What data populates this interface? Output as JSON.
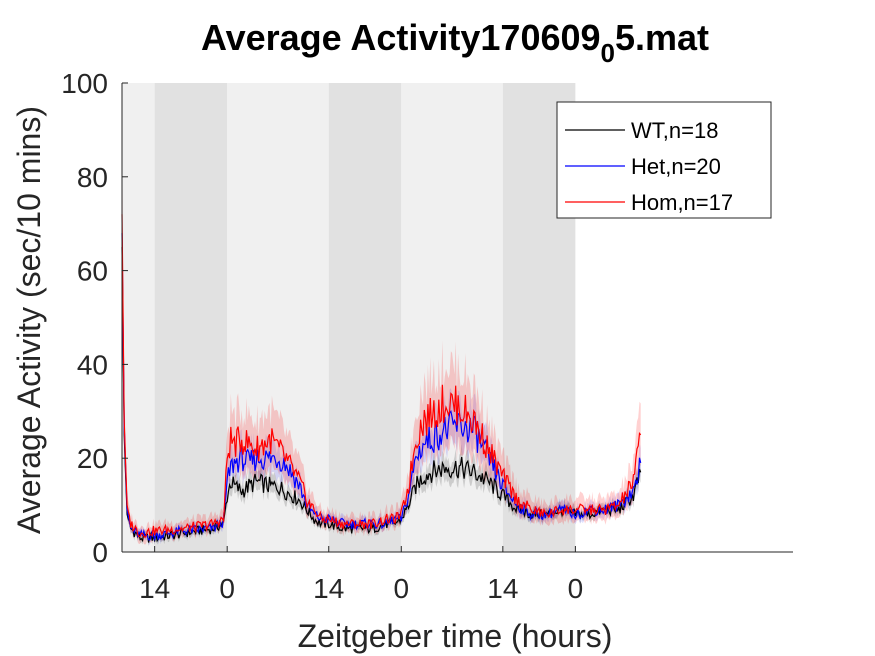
{
  "chart_data": {
    "type": "line",
    "title": "Average Activity170609_05.mat",
    "title_parts": {
      "main": "Average Activity170609",
      "subscript": "0",
      "tail": "5.mat"
    },
    "xlabel": "Zeitgeber time (hours)",
    "ylabel": "Average Activity (sec/10 mins)",
    "ylim": [
      0,
      100
    ],
    "yticks": [
      0,
      20,
      40,
      60,
      80,
      100
    ],
    "xlim_hours": [
      -4.5,
      88
    ],
    "xticks": [
      {
        "hours": 0,
        "label": "14"
      },
      {
        "hours": 10,
        "label": "0"
      },
      {
        "hours": 24,
        "label": "14"
      },
      {
        "hours": 34,
        "label": "0"
      },
      {
        "hours": 48,
        "label": "14"
      },
      {
        "hours": 58,
        "label": "0"
      }
    ],
    "light_dark_periods": [
      {
        "start_hours": -4.5,
        "end_hours": 0,
        "phase": "light"
      },
      {
        "start_hours": 0,
        "end_hours": 10,
        "phase": "dark"
      },
      {
        "start_hours": 10,
        "end_hours": 24,
        "phase": "light"
      },
      {
        "start_hours": 24,
        "end_hours": 34,
        "phase": "dark"
      },
      {
        "start_hours": 34,
        "end_hours": 48,
        "phase": "light"
      },
      {
        "start_hours": 48,
        "end_hours": 58,
        "phase": "dark"
      }
    ],
    "shading_colors": {
      "light": "#f0f0f0",
      "dark": "#e1e1e1"
    },
    "legend": {
      "position": "top-right"
    },
    "series": [
      {
        "name": "WT,n=18",
        "color": "#000000",
        "fill": "rgba(0,0,0,0.15)",
        "band": 2,
        "x_hours": [
          -4.5,
          -4.2,
          -3.8,
          -3.3,
          -2,
          0,
          4,
          8,
          9.5,
          10,
          10.5,
          11,
          12,
          13,
          14,
          16,
          17,
          18,
          20,
          21,
          22,
          23,
          24,
          26,
          30,
          32,
          33,
          34,
          35,
          36,
          37,
          38,
          40,
          42,
          44,
          46,
          48,
          50,
          52,
          54,
          56,
          58,
          60,
          62,
          64,
          66,
          67
        ],
        "values": [
          65,
          25,
          8,
          5,
          3,
          3,
          4,
          5,
          6,
          12,
          15,
          14,
          13,
          14,
          15,
          14,
          14,
          13,
          11,
          9,
          7,
          6,
          6,
          5,
          5,
          6,
          6,
          7,
          10,
          14,
          16,
          17,
          18,
          18,
          17,
          15,
          12,
          9,
          8,
          8,
          9,
          8,
          8,
          9,
          9,
          12,
          17
        ]
      },
      {
        "name": "Het,n=20",
        "color": "#0000ff",
        "fill": "rgba(0,0,255,0.12)",
        "band": 2.5,
        "x_hours": [
          -4.5,
          -4.2,
          -3.8,
          -3.3,
          -2,
          0,
          4,
          8,
          9.5,
          10,
          10.5,
          11,
          12,
          13,
          14,
          16,
          17,
          18,
          20,
          21,
          22,
          23,
          24,
          26,
          30,
          32,
          33,
          34,
          35,
          36,
          37,
          38,
          40,
          42,
          44,
          46,
          48,
          50,
          52,
          54,
          56,
          58,
          60,
          62,
          64,
          66,
          67
        ],
        "values": [
          68,
          27,
          9,
          5,
          3.5,
          3.5,
          4.5,
          5,
          6.5,
          15,
          18,
          19,
          20,
          19,
          20,
          20,
          20,
          19,
          14,
          10,
          8,
          7,
          7,
          6,
          6,
          6,
          7,
          7,
          12,
          20,
          23,
          24,
          26,
          27,
          26,
          20,
          14,
          10,
          8,
          8,
          9,
          8,
          9,
          9,
          10,
          13,
          19
        ]
      },
      {
        "name": "Hom,n=17",
        "color": "#ff0000",
        "fill": "rgba(255,0,0,0.18)",
        "band": 4,
        "x_hours": [
          -4.5,
          -4.2,
          -3.8,
          -3.3,
          -2,
          0,
          4,
          8,
          9.5,
          10,
          10.5,
          11,
          12,
          13,
          14,
          16,
          17,
          18,
          20,
          21,
          22,
          23,
          24,
          26,
          30,
          32,
          33,
          34,
          35,
          36,
          37,
          38,
          40,
          42,
          44,
          46,
          48,
          50,
          52,
          54,
          56,
          58,
          60,
          62,
          64,
          66,
          67
        ],
        "values": [
          72,
          28,
          10,
          6,
          4,
          4.5,
          5,
          6,
          7,
          20,
          24,
          23,
          24,
          23,
          22,
          24,
          22,
          20,
          15,
          11,
          9,
          7,
          7,
          6,
          6,
          7,
          7,
          8,
          14,
          24,
          28,
          29,
          32,
          31,
          28,
          22,
          16,
          11,
          9,
          8,
          9,
          9,
          9,
          9,
          10,
          15,
          25
        ]
      }
    ]
  }
}
